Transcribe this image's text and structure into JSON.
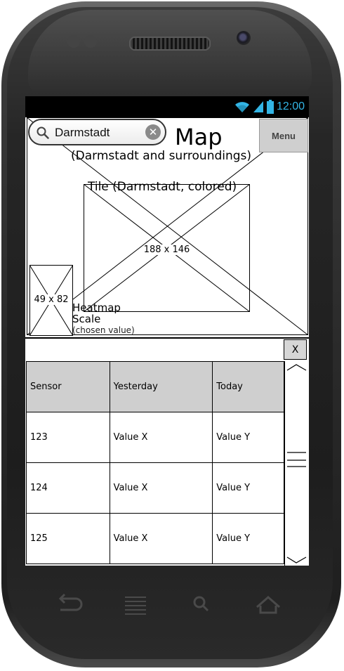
{
  "status_bar": {
    "time": "12:00",
    "accent_color": "#33b5e5"
  },
  "search": {
    "value": "Darmstadt"
  },
  "map": {
    "title": "Map",
    "subtitle": "(Darmstadt and surroundings)",
    "menu_label": "Menu",
    "tile_label": "Tile (Darmstadt, colored)",
    "tile_size": "188 x 146",
    "heatmap_size": "49 x 82",
    "heatmap_label_line1": "Heatmap",
    "heatmap_label_line2": "Scale",
    "heatmap_sublabel": "(chosen value)"
  },
  "panel": {
    "close_label": "X",
    "columns": [
      "Sensor",
      "Yesterday",
      "Today"
    ],
    "rows": [
      [
        "123",
        "Value X",
        "Value Y"
      ],
      [
        "124",
        "Value X",
        "Value Y"
      ],
      [
        "125",
        "Value X",
        "Value Y"
      ]
    ]
  },
  "icons": {
    "wifi": "wifi-icon",
    "signal": "signal-icon",
    "battery": "battery-icon",
    "search": "search-icon",
    "clear": "clear-icon",
    "back": "back-icon",
    "recents": "recents-icon",
    "search_key": "search-icon",
    "home": "home-icon"
  }
}
